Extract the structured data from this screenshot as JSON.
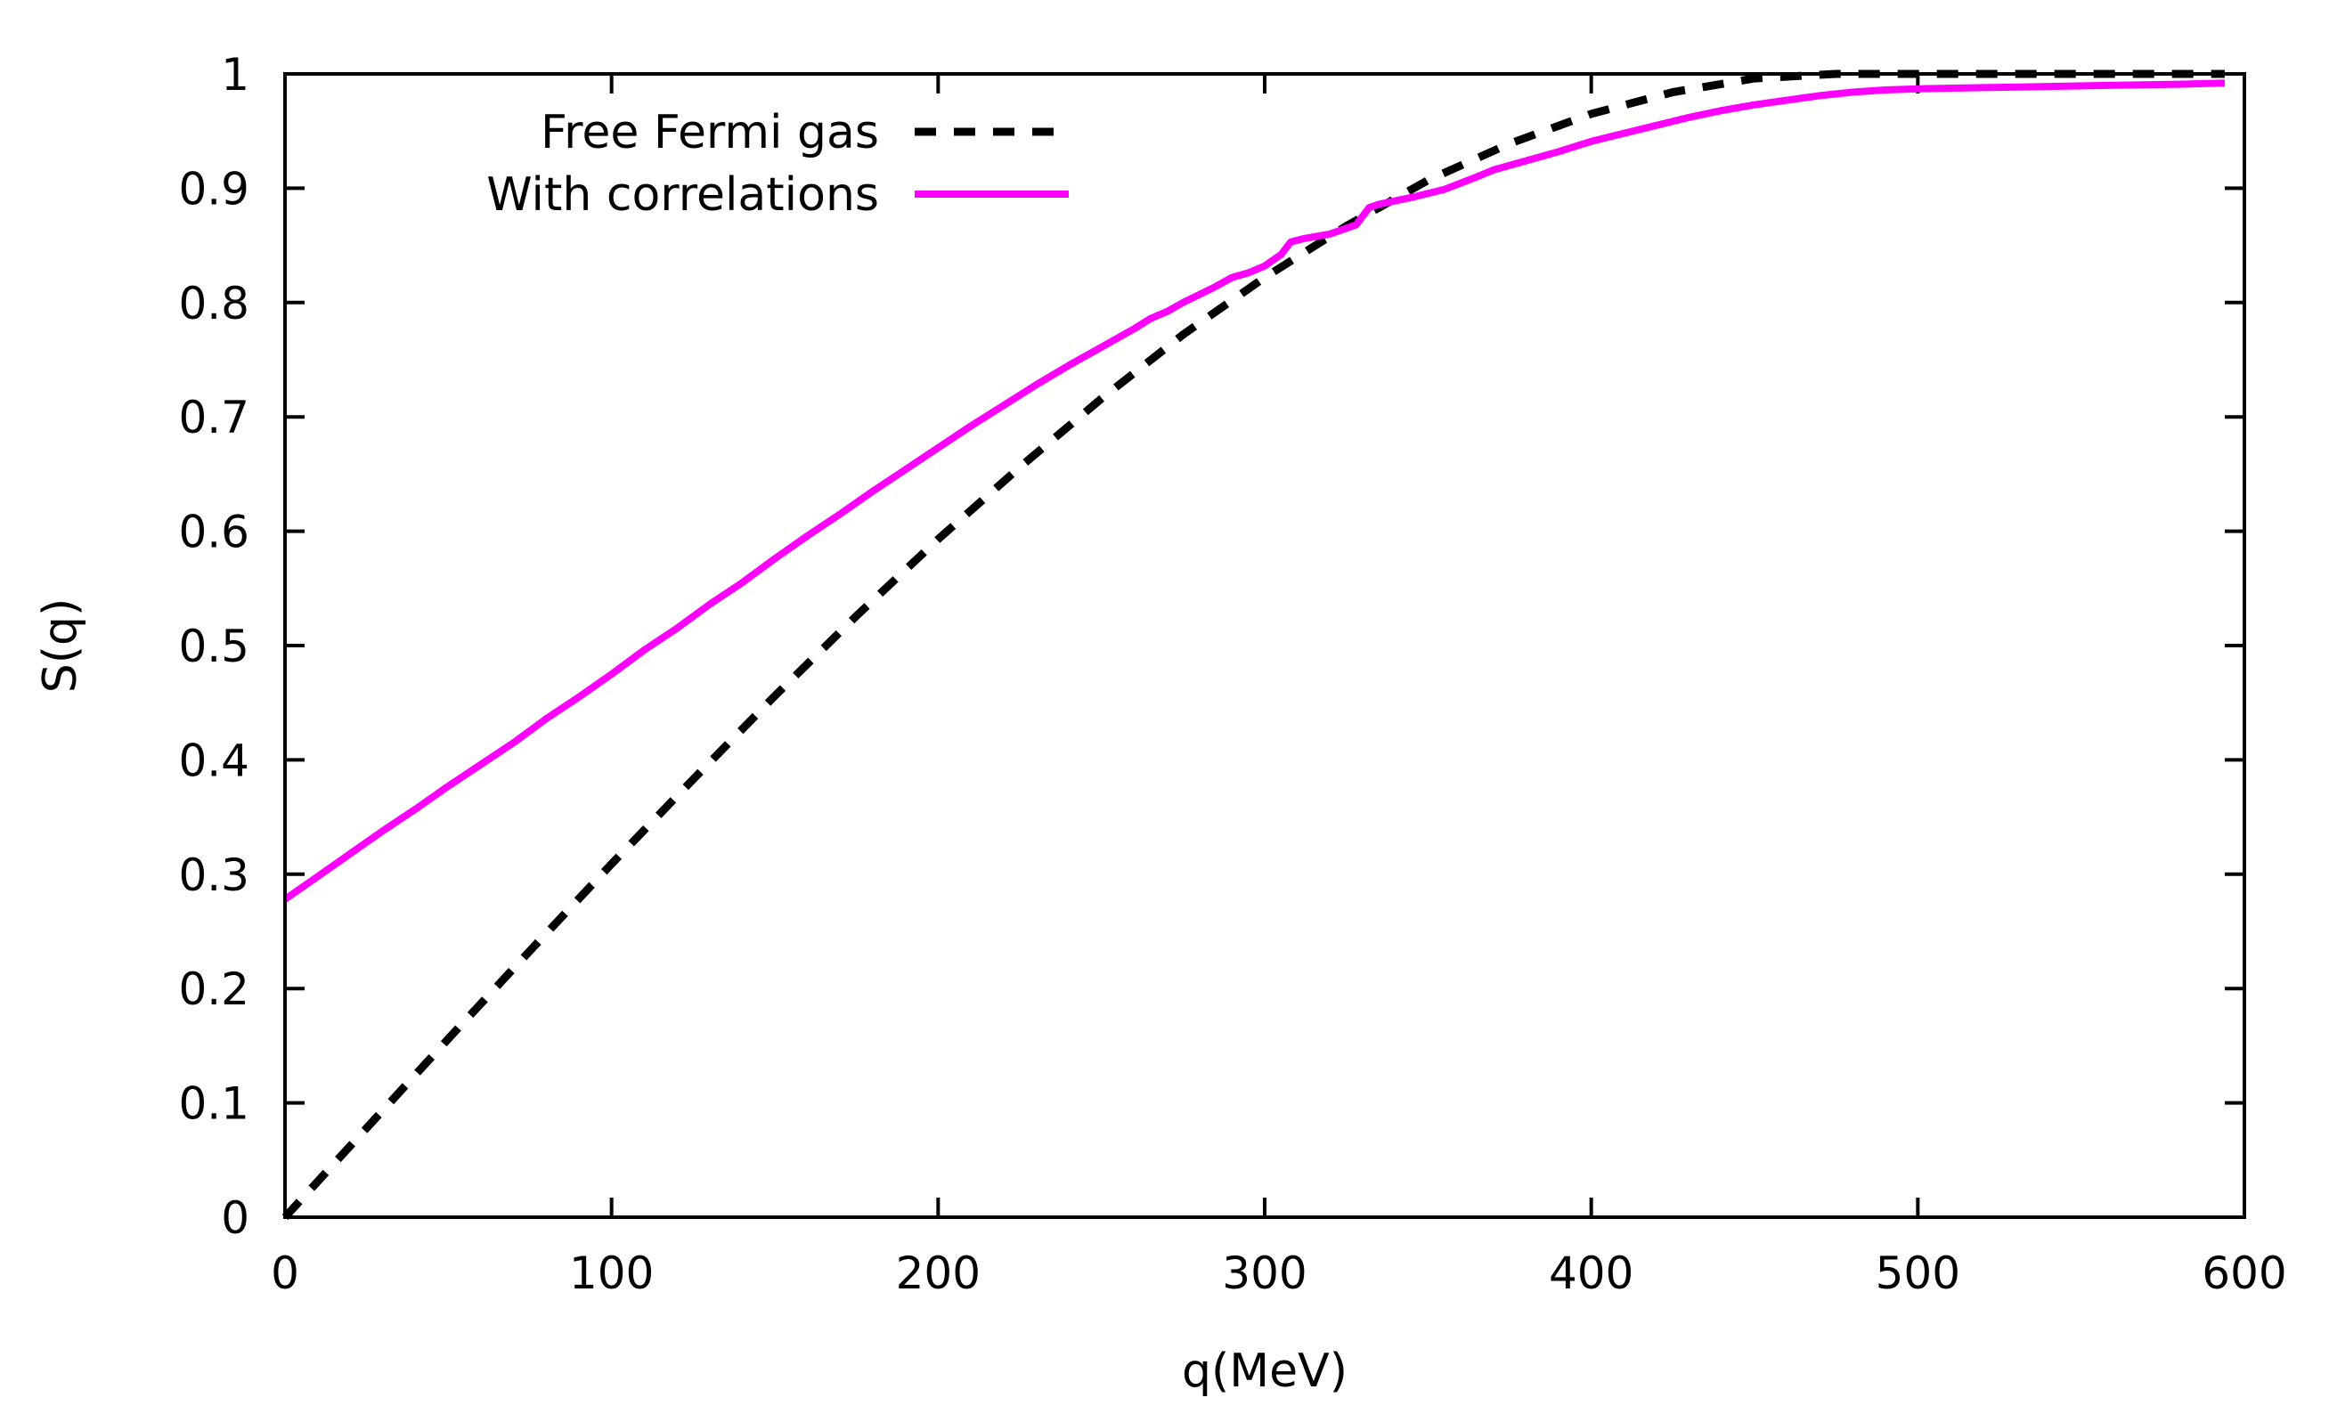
{
  "chart_data": {
    "type": "line",
    "title": "",
    "xlabel": "q(MeV)",
    "ylabel": "S(q)",
    "xlim": [
      0,
      600
    ],
    "ylim": [
      0,
      1
    ],
    "xticks": [
      0,
      100,
      200,
      300,
      400,
      500,
      600
    ],
    "yticks": [
      0,
      0.1,
      0.2,
      0.3,
      0.4,
      0.5,
      0.6,
      0.7,
      0.8,
      0.9,
      1
    ],
    "xtick_labels": [
      "0",
      "100",
      "200",
      "300",
      "400",
      "500",
      "600"
    ],
    "ytick_labels": [
      "0",
      "0.1",
      "0.2",
      "0.3",
      "0.4",
      "0.5",
      "0.6",
      "0.7",
      "0.8",
      "0.9",
      "1"
    ],
    "grid": false,
    "legend_position": "top-left",
    "series": [
      {
        "name": "Free Fermi gas",
        "style": "dashed",
        "color": "#000000",
        "x": [
          0,
          25,
          50,
          75,
          100,
          125,
          150,
          175,
          200,
          225,
          250,
          275,
          300,
          325,
          350,
          375,
          400,
          425,
          450,
          475,
          500,
          525,
          550,
          575,
          594
        ],
        "y": [
          0,
          0.078,
          0.156,
          0.233,
          0.309,
          0.383,
          0.456,
          0.526,
          0.593,
          0.656,
          0.716,
          0.772,
          0.822,
          0.867,
          0.907,
          0.939,
          0.965,
          0.984,
          0.996,
          1.0,
          1.0,
          1.0,
          1.0,
          1.0,
          1.0
        ]
      },
      {
        "name": "With correlations",
        "style": "solid",
        "color": "#ff00ff",
        "x": [
          0,
          10,
          20,
          30,
          40,
          50,
          60,
          70,
          80,
          90,
          100,
          110,
          120,
          130,
          140,
          150,
          160,
          170,
          180,
          190,
          200,
          210,
          220,
          230,
          240,
          250,
          260,
          265,
          270,
          275,
          280,
          285,
          290,
          295,
          300,
          305,
          308,
          312,
          320,
          328,
          332,
          335,
          345,
          355,
          365,
          370,
          380,
          390,
          400,
          410,
          420,
          430,
          440,
          450,
          460,
          470,
          480,
          490,
          500,
          520,
          540,
          560,
          580,
          594
        ],
        "y": [
          0.278,
          0.298,
          0.318,
          0.338,
          0.357,
          0.377,
          0.396,
          0.415,
          0.436,
          0.455,
          0.475,
          0.496,
          0.515,
          0.536,
          0.555,
          0.576,
          0.596,
          0.615,
          0.635,
          0.654,
          0.673,
          0.692,
          0.71,
          0.728,
          0.745,
          0.761,
          0.777,
          0.786,
          0.792,
          0.8,
          0.807,
          0.814,
          0.822,
          0.826,
          0.832,
          0.842,
          0.853,
          0.856,
          0.86,
          0.868,
          0.883,
          0.886,
          0.892,
          0.899,
          0.91,
          0.916,
          0.924,
          0.932,
          0.941,
          0.948,
          0.955,
          0.962,
          0.968,
          0.973,
          0.977,
          0.981,
          0.984,
          0.986,
          0.987,
          0.988,
          0.989,
          0.99,
          0.991,
          0.992
        ]
      }
    ]
  }
}
